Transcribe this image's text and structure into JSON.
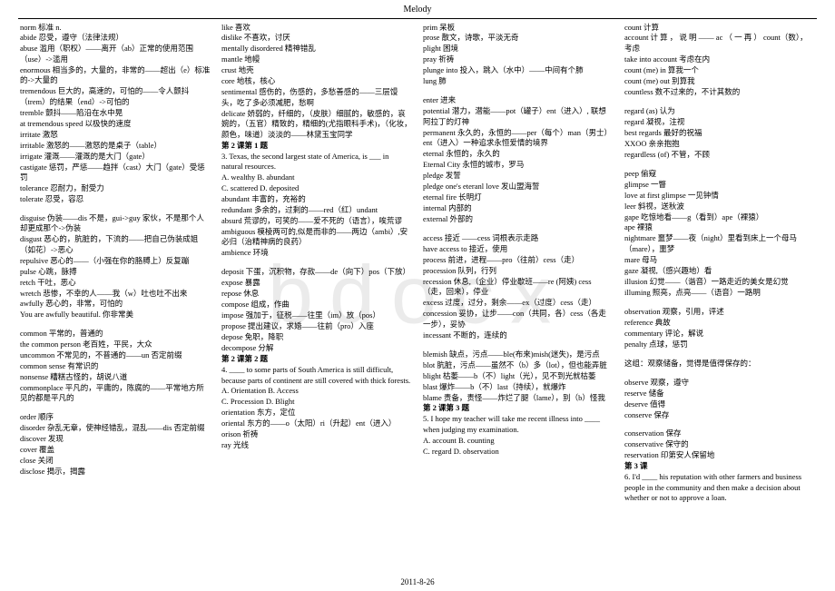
{
  "header": "Melody",
  "footer": "2011-8-26",
  "watermark": "bdocx",
  "col1": [
    "norm  标准  n.",
    "abide  忍受，遵守（法律法规）",
    "abuse 滥用（职权）——离开（ab）正常的使用范围（use）->滥用",
    "enormous  相当多的，大量的，非常的——超出（e）标准的->大量的",
    "tremendous  巨大的，高速的，可怕的——令人颤抖（trem）的结果（end）->可怕的",
    "tremble  颤抖——陷沿在水中晃",
    "at tremendous speed 以极快的速度",
    "irritate  激怒",
    "irritable  激怒的——激怒的是桌子（table）",
    "irrigate  灌溉——灌溉的是大门（gate）",
    "castigate  惩罚，严惩——趋拌（cast）大门（gate）受惩罚",
    "tolerance  忍耐力，耐受力",
    "tolerate  忍受，容忍",
    "",
    "disguise  伪装——dis 不是，gui->guy 家伙，不是那个人却更成那个->伪装",
    "disgust 恶心的，肮脏的，下流的——把自己伪装成姐（如花）->恶心",
    "repulsive  恶心的——（小强在你的胳膊上）反复蹦",
    "pulse  心跳，脉搏",
    "retch  干吐，恶心",
    "wretch  悲惨，不幸的人——我（w）吐也吐不出来 awfully  恶心的，非常，可怕的",
    "You are awfully beautiful. 你非常美",
    "",
    "common  平常的，普通的",
    "the common person  老百姓，平民，大众",
    "uncommon  不常见的，不普通的——un 否定前缀",
    "common sense  有常识的",
    "nonsense 糟糕古怪的，胡说八道",
    "commonplace 平凡的，平庸的，陈腐的——平常地方所见的都是平凡的",
    "",
    "order  顺序",
    "disorder  杂乱无章，使神经错乱，混乱——dis 否定前缀",
    "discover  发现",
    "cover  覆盖",
    "close  关闭",
    "disclose  揭示，揭露"
  ],
  "col2": [
    "like 喜欢",
    "dislike 不喜欢，讨厌",
    "mentally disordered 精神错乱",
    "mantle  地幔",
    "crust  地壳",
    "core  地核，核心",
    "sentimental  感伤的，伤感的，多愁善感的——三层馒头，吃了多必须减肥，愁啊",
    "delicate 娇弱的，纤细的，（皮肤）细腻的，敏感的，哀婉的，（五官）精致的，精细的(尤指眼科手术)，（化妆，颜色，味道）淡淡的——林黛玉宝同学",
    {
      "b": true,
      "t": "第 2 课第 1 题"
    },
    "3. Texas, the second largest state of America, is ___ in natural resources.",
    "A. wealthy    B. abundant",
    "C. scattered    D. deposited",
    "abundant  丰富的，充裕的",
    "redundant  多余的，过剩的——red（红）undant",
    "absurd 荒谬的，可笑的——爱不死的（语言），唉荒谬",
    "ambiguous  模棱两可的,似是而非的——两边（ambi）,安必归（治精神病的良药）",
    "ambience  环境",
    "",
    "deposit 下蛋，沉积物，存款——de（向下）pos（下放）",
    "expose  暴露",
    "repose  休息",
    "compose  组成，作曲",
    "impose  强加于，征税——往里（im）放（pos）",
    "propose  提出建议，求婚——往前（pro）入座",
    "depose  免职，降职",
    "decompose  分解",
    {
      "b": true,
      "t": "第 2 课第 2 题"
    },
    "4. ____ to some parts of South America is still difficult, because parts of continent are still covered with thick forests.",
    "A. Orientation   B. Access",
    "C. Procession    D. Blight",
    "orientation  东方，定位",
    "oriental  东方的——o（太阳）ri（升起）ent（进入）",
    "orison  祈祷",
    "ray  光线"
  ],
  "col3": [
    "prim  呆板",
    "prose 散文，诗歌，平淡无奇",
    "plight 困境",
    "pray 祈祷",
    "plunge into  投入，跳入（水中）——中间有个肺",
    "lung  肺",
    "",
    "enter  进来",
    "potential 潜力，潜能——pot（罐子）ent（进入）, 联想阿拉丁的灯神",
    "permanent 永久的，永恒的——per（每个）man（男士）ent（进入）一种追求永恒爱情的境界",
    "eternal  永恒的，永久的",
    "Eternal City 永恒的城市，罗马",
    "pledge 发誓",
    "pledge one's eteranl love 发山盟海誓",
    "eternal fire  长明灯",
    "internal  内部的",
    "external  外部的",
    "",
    "access 接近 ——cess 词根表示走路",
    "have access to 接近，使用",
    "process 前进，进程——pro（往前）cess（走）",
    "procession 队列，行列",
    "recession 休息,（企业）停业歇班——re (阿姨) cess（走，回来），停业",
    "excess 过度，过分，剩余——ex（过度）cess（走）",
    "concession 妥协，让步——con（共同，各）cess（各走一步），妥协",
    "incessant  不断的，连续的",
    "",
    "blemish 缺点，污点——ble(布来)mish(迷失)，是污点",
    "blot 肮脏，污点——虽然不（b）多（lot），但也能弄脏",
    "blight 枯萎——b（不）light（光），见不到光就枯萎",
    "blast 爆炸——b（不）last（持续），就爆炸",
    "blame 责备，责怪——炸烂了腿（lame），别（b）怪我",
    {
      "b": true,
      "t": "第 2 课第 3 题"
    },
    "5. I hope my teacher will take me recent illness into ____ when judging my examination.",
    "A. account     B. counting",
    "C. regard      D. observation"
  ],
  "col4": [
    "count  计算",
    "account  计 算 ， 说 明 —— ac （ 一 再 ） count（数），考虑",
    "take into account  考虑在内",
    "count (me) in 算我一个",
    "count (me) out  别算我",
    "countless  数不过来的，不计其数的",
    "",
    "regard (as)  认为",
    "regard  凝视，注视",
    "best regards  最好的祝福",
    "XXOO  亲亲抱抱",
    "regardless (of)  不管，不顾",
    "",
    "peep  偷窥",
    "glimpse  一瞥",
    "love at first glimpse  一见钟情",
    "leer  斜视，送秋波",
    "gape  吃惊地看——g（看到）ape（裸猿）",
    "ape  裸猿",
    "nightmare 噩梦——夜（night）里看到床上一个母马（mare），噩梦",
    "mare  母马",
    "gaze  凝视,（感兴趣地）看",
    "illusion  幻觉——（谐音）一路走近的美女是幻觉",
    "illuming 照亮，点亮——（语音）一路明",
    "",
    "observation  观察，引用，评述",
    "reference  典故",
    "commentary  评论，解说",
    "penalty  点球，惩罚",
    "",
    "这组：观察储备，觉得是值得保存的：",
    "",
    "observe  观察，遵守",
    "reserve  储备",
    "deserve  值得",
    "conserve  保存",
    "",
    "conservation  保存",
    "conservative  保守的",
    "reservation  印第安人保留地",
    {
      "b": true,
      "t": "第 3 课"
    },
    "6. I'd ____ his reputation with other farmers and business people in the community and then make a decision about whether or not to approve a loan."
  ]
}
